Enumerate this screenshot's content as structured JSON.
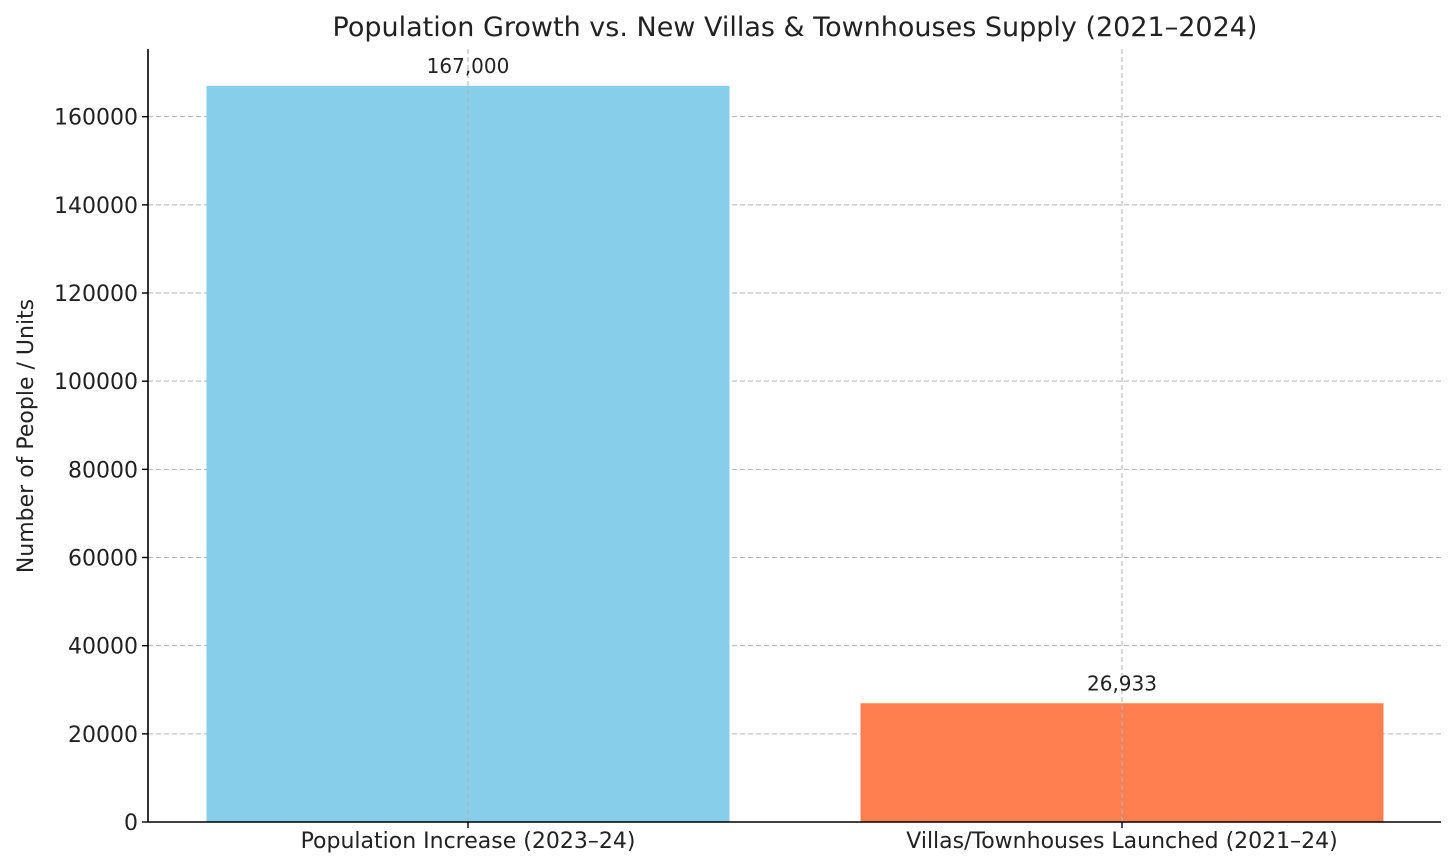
{
  "chart_data": {
    "type": "bar",
    "title": "Population Growth vs. New Villas & Townhouses Supply (2021–2024)",
    "xlabel": "",
    "ylabel": "Number of People / Units",
    "categories": [
      "Population Increase (2023–24)",
      "Villas/Townhouses Launched (2021–24)"
    ],
    "values": [
      167000,
      26933
    ],
    "value_labels": [
      "167,000",
      "26,933"
    ],
    "colors": [
      "#87ceeb",
      "#ff7f50"
    ],
    "ylim": [
      0,
      175350
    ],
    "yticks": [
      0,
      20000,
      40000,
      60000,
      80000,
      100000,
      120000,
      140000,
      160000
    ],
    "ytick_labels": [
      "0",
      "20000",
      "40000",
      "60000",
      "80000",
      "100000",
      "120000",
      "140000",
      "160000"
    ],
    "grid": true,
    "legend": "none"
  }
}
